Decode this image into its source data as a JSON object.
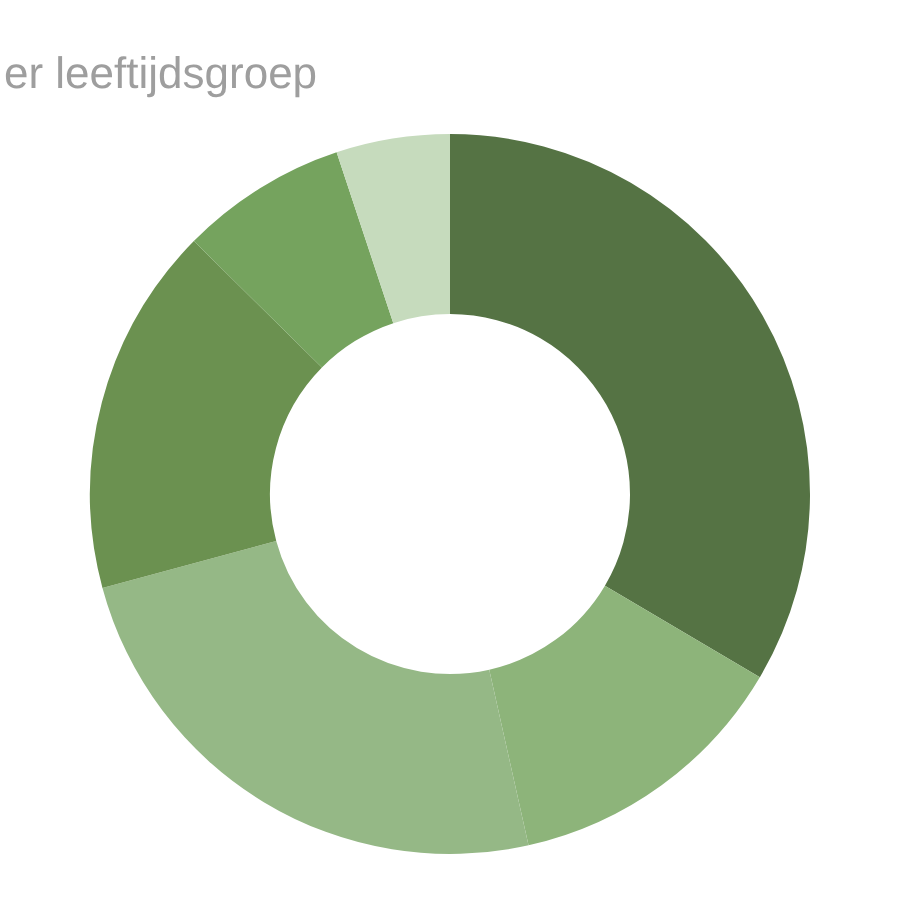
{
  "chart_data": {
    "type": "donut",
    "title": "er leeftijdsgroep",
    "categories": [
      null,
      null,
      null,
      null,
      null,
      null
    ],
    "values": [
      33.5,
      13,
      24.3,
      16.6,
      7.5,
      5.1
    ],
    "colors": [
      "#557344",
      "#8db47a",
      "#95b886",
      "#6b9150",
      "#75a35e",
      "#c6dbbd"
    ],
    "legend": false
  }
}
